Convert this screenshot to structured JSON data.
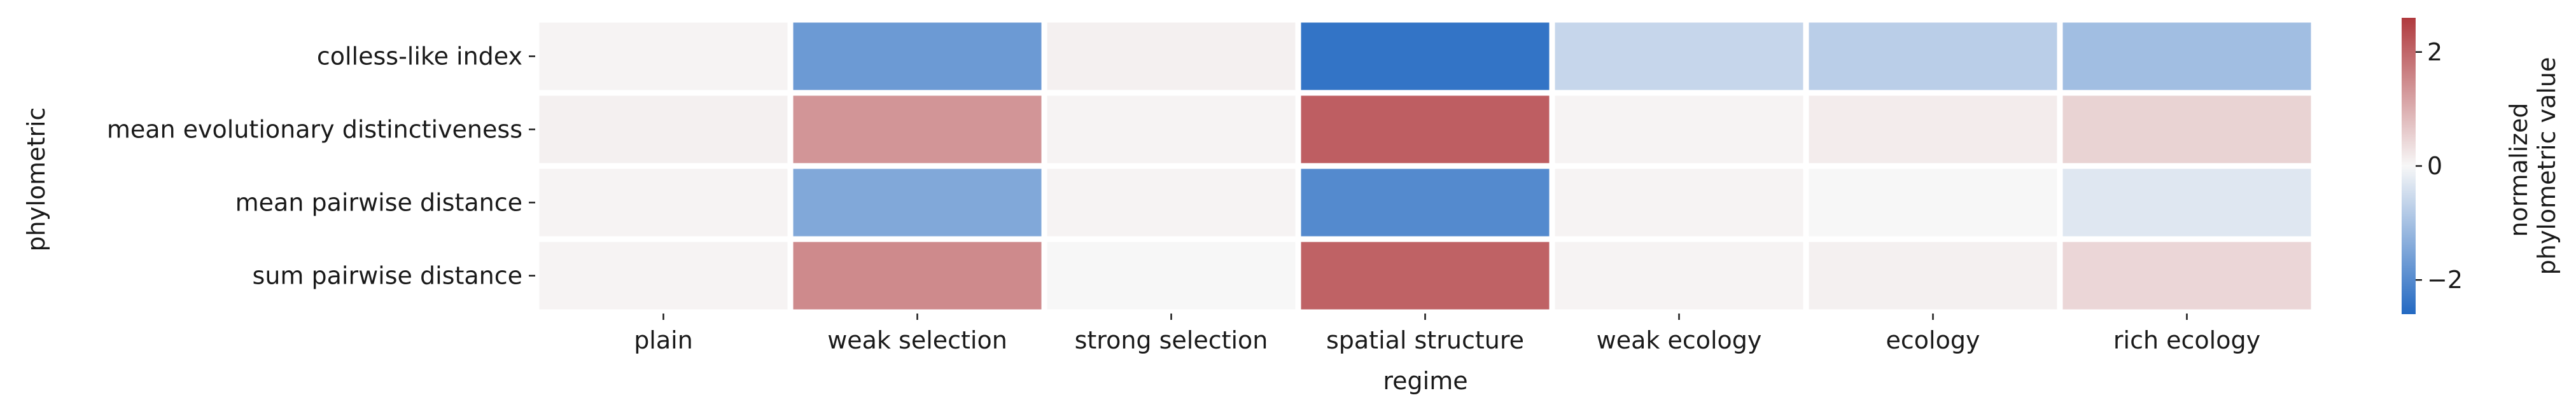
{
  "chart_data": {
    "type": "heatmap",
    "title": "",
    "xlabel": "regime",
    "ylabel": "phylometric",
    "x_categories": [
      "plain",
      "weak selection",
      "strong selection",
      "spatial structure",
      "weak ecology",
      "ecology",
      "rich ecology"
    ],
    "y_categories": [
      "colless-like index",
      "mean evolutionary distinctiveness",
      "mean pairwise distance",
      "sum pairwise distance"
    ],
    "values": [
      [
        0.05,
        -1.7,
        0.1,
        -2.4,
        -0.6,
        -0.75,
        -1.05
      ],
      [
        0.1,
        1.35,
        0.05,
        2.1,
        0.05,
        0.15,
        0.5
      ],
      [
        0.05,
        -1.45,
        0.05,
        -2.0,
        0.05,
        0.0,
        -0.3
      ],
      [
        0.05,
        1.5,
        0.0,
        2.05,
        0.05,
        0.1,
        0.45
      ]
    ],
    "colorbar": {
      "label": "normalized\nphylometric value",
      "label_lines": [
        "normalized",
        "phylometric value"
      ],
      "range": [
        -2.6,
        2.6
      ],
      "ticks": [
        2,
        0,
        -2
      ],
      "tick_labels": [
        "2",
        "0",
        "−2"
      ],
      "colors": {
        "low": "#2369c2",
        "mid": "#f7f7f7",
        "high": "#b03a3e"
      }
    }
  }
}
